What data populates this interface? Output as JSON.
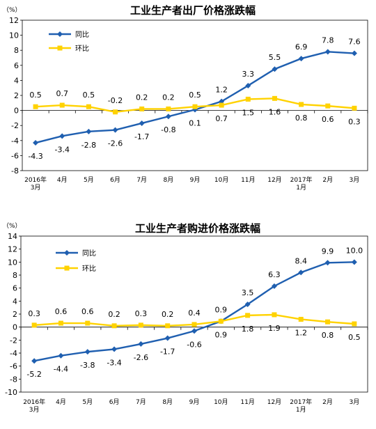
{
  "colors": {
    "yoy": "#1f5fb0",
    "mom": "#ffd200",
    "axis": "#000000",
    "frame": "#000000"
  },
  "chart_data": [
    {
      "type": "line",
      "title": "工业生产者出厂价格涨跌幅",
      "unit": "（%）",
      "ylim": [
        -8,
        12
      ],
      "yticks": [
        "-8",
        "-6",
        "-4",
        "-2",
        "0",
        "2",
        "4",
        "6",
        "8",
        "10",
        "12"
      ],
      "categories": [
        [
          "2016年",
          "3月"
        ],
        [
          "4月"
        ],
        [
          "5月"
        ],
        [
          "6月"
        ],
        [
          "7月"
        ],
        [
          "8月"
        ],
        [
          "9月"
        ],
        [
          "10月"
        ],
        [
          "11月"
        ],
        [
          "12月"
        ],
        [
          "2017年",
          "1月"
        ],
        [
          "2月"
        ],
        [
          "3月"
        ]
      ],
      "series": [
        {
          "name": "同比",
          "key": "yoy",
          "values": [
            -4.3,
            -3.4,
            -2.8,
            -2.6,
            -1.7,
            -0.8,
            0.1,
            1.2,
            3.3,
            5.5,
            6.9,
            7.8,
            7.6
          ],
          "labels": [
            "-4.3",
            "-3.4",
            "-2.8",
            "-2.6",
            "-1.7",
            "-0.8",
            "0.1",
            "1.2",
            "3.3",
            "5.5",
            "6.9",
            "7.8",
            "7.6"
          ],
          "label_pos": [
            "below",
            "below",
            "below",
            "below",
            "below",
            "below",
            "below",
            "above",
            "above",
            "above",
            "above",
            "above",
            "above"
          ]
        },
        {
          "name": "环比",
          "key": "mom",
          "values": [
            0.5,
            0.7,
            0.5,
            -0.2,
            0.2,
            0.2,
            0.5,
            0.7,
            1.5,
            1.6,
            0.8,
            0.6,
            0.3
          ],
          "labels": [
            "0.5",
            "0.7",
            "0.5",
            "-0.2",
            "0.2",
            "0.2",
            "0.5",
            "0.7",
            "1.5",
            "1.6",
            "0.8",
            "0.6",
            "0.3"
          ],
          "label_pos": [
            "above",
            "above",
            "above",
            "above",
            "above",
            "above",
            "above",
            "below",
            "below",
            "below",
            "below",
            "below",
            "below"
          ]
        }
      ],
      "legend": "top-left",
      "grid": false
    },
    {
      "type": "line",
      "title": "工业生产者购进价格涨跌幅",
      "unit": "（%）",
      "ylim": [
        -10,
        14
      ],
      "yticks": [
        "-10",
        "-8",
        "-6",
        "-4",
        "-2",
        "0",
        "2",
        "4",
        "6",
        "8",
        "10",
        "12",
        "14"
      ],
      "categories": [
        [
          "2016年",
          "3月"
        ],
        [
          "4月"
        ],
        [
          "5月"
        ],
        [
          "6月"
        ],
        [
          "7月"
        ],
        [
          "8月"
        ],
        [
          "9月"
        ],
        [
          "10月"
        ],
        [
          "11月"
        ],
        [
          "12月"
        ],
        [
          "2017年",
          "1月"
        ],
        [
          "2月"
        ],
        [
          "3月"
        ]
      ],
      "series": [
        {
          "name": "同比",
          "key": "yoy",
          "values": [
            -5.2,
            -4.4,
            -3.8,
            -3.4,
            -2.6,
            -1.7,
            -0.6,
            0.9,
            3.5,
            6.3,
            8.4,
            9.9,
            10.0
          ],
          "labels": [
            "-5.2",
            "-4.4",
            "-3.8",
            "-3.4",
            "-2.6",
            "-1.7",
            "-0.6",
            "0.9",
            "3.5",
            "6.3",
            "8.4",
            "9.9",
            "10.0"
          ],
          "label_pos": [
            "below",
            "below",
            "below",
            "below",
            "below",
            "below",
            "below",
            "below",
            "above",
            "above",
            "above",
            "above",
            "above"
          ]
        },
        {
          "name": "环比",
          "key": "mom",
          "values": [
            0.3,
            0.6,
            0.6,
            0.2,
            0.3,
            0.2,
            0.4,
            0.9,
            1.8,
            1.9,
            1.2,
            0.8,
            0.5
          ],
          "labels": [
            "0.3",
            "0.6",
            "0.6",
            "0.2",
            "0.3",
            "0.2",
            "0.4",
            "0.9",
            "1.8",
            "1.9",
            "1.2",
            "0.8",
            "0.5"
          ],
          "label_pos": [
            "above",
            "above",
            "above",
            "above",
            "above",
            "above",
            "above",
            "above",
            "below",
            "below",
            "below",
            "below",
            "below"
          ]
        }
      ],
      "legend": "top-left",
      "grid": false
    }
  ]
}
